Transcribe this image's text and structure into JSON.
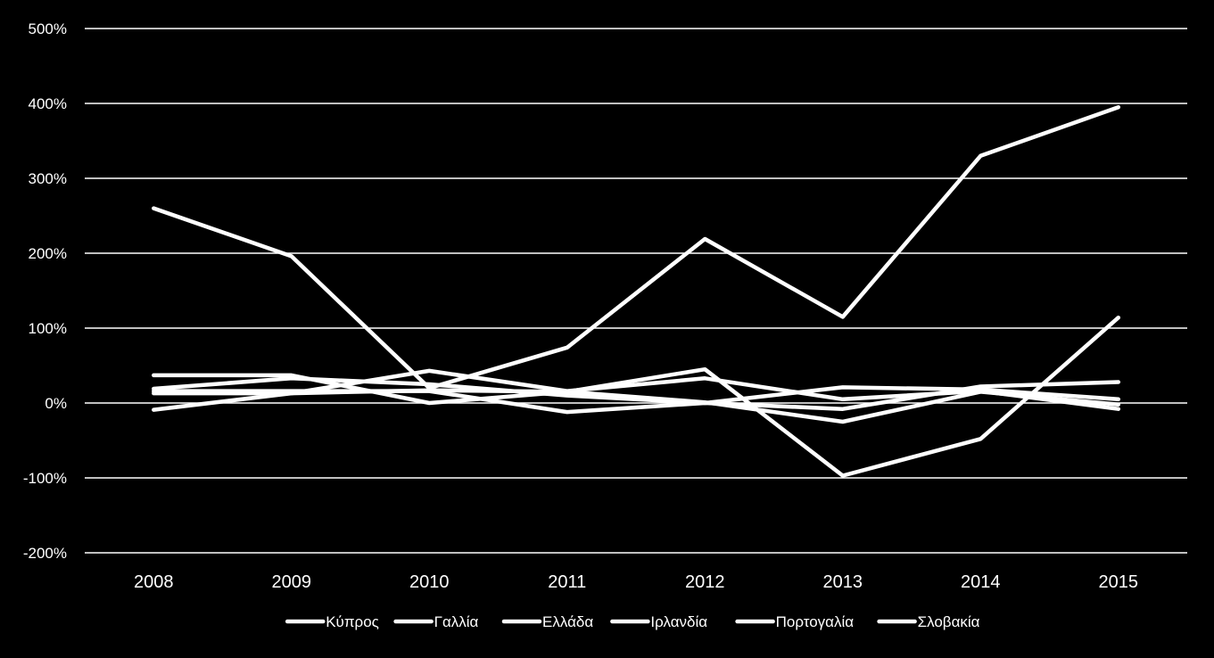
{
  "chart_data": {
    "type": "line",
    "title": "",
    "xlabel": "",
    "ylabel": "",
    "x": [
      "2008",
      "2009",
      "2010",
      "2011",
      "2012",
      "2013",
      "2014",
      "2015"
    ],
    "ylim": [
      -200,
      500
    ],
    "yticks": [
      -200,
      -100,
      0,
      100,
      200,
      300,
      400,
      500
    ],
    "ytick_labels": [
      "-200%",
      "-100%",
      "0%",
      "100%",
      "200%",
      "300%",
      "400%",
      "500%"
    ],
    "y_unit": "%",
    "grid": true,
    "legend_position": "bottom",
    "line_color": "#ffffff",
    "background_color": "#000000",
    "series": [
      {
        "name": "Κύπρος",
        "values": [
          260,
          196,
          20,
          74,
          219,
          115,
          330,
          395
        ]
      },
      {
        "name": "Γαλλία",
        "values": [
          13,
          13,
          17,
          15,
          1,
          -25,
          15,
          -2
        ]
      },
      {
        "name": "Ελλάδα",
        "values": [
          37,
          37,
          0,
          15,
          45,
          -97,
          -48,
          114
        ]
      },
      {
        "name": "Ιρλανδία",
        "values": [
          19,
          33,
          25,
          10,
          0,
          21,
          18,
          5
        ]
      },
      {
        "name": "Πορτογαλία",
        "values": [
          16,
          16,
          16,
          -12,
          0,
          -8,
          22,
          28
        ]
      },
      {
        "name": "Σλοβακία",
        "values": [
          -9,
          13,
          43,
          16,
          33,
          5,
          16,
          -8
        ]
      }
    ]
  }
}
